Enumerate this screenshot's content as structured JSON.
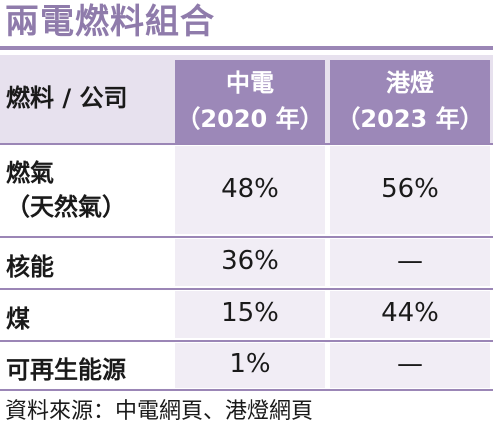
{
  "title": "兩電燃料組合",
  "header": {
    "label": "燃料 / 公司",
    "col1_line1": "中電",
    "col1_line2": "（2020 年）",
    "col2_line1": "港燈",
    "col2_line2": "（2023 年）"
  },
  "rows": [
    {
      "cat_line1": "燃氣",
      "cat_line2": "（天然氣）",
      "v1": "48%",
      "v2": "56%"
    },
    {
      "cat_line1": "核能",
      "v1": "36%",
      "v2": "—"
    },
    {
      "cat_line1": "煤",
      "v1": "15%",
      "v2": "44%"
    },
    {
      "cat_line1": "可再生能源",
      "v1": "1%",
      "v2": "—"
    }
  ],
  "footer": "資料來源：中電網頁、港燈網頁",
  "colors": {
    "title": "#8f7bab",
    "accent": "#9c88b8",
    "header_band": "#e7e1ee",
    "cell_bg": "#f1edf5"
  }
}
